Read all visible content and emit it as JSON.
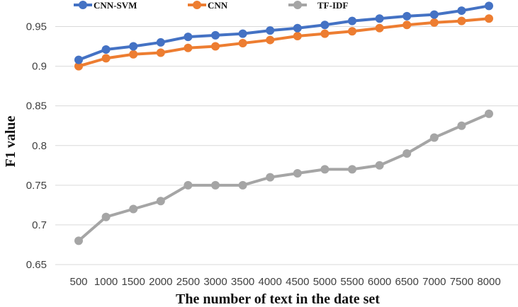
{
  "chart_data": {
    "type": "line",
    "title": "",
    "xlabel": "The number of text in the date set",
    "ylabel": "F1 value",
    "x": [
      500,
      1000,
      1500,
      2000,
      2500,
      3000,
      3500,
      4000,
      4500,
      5000,
      5500,
      6000,
      6500,
      7000,
      7500,
      8000
    ],
    "x_tick_labels": [
      "500",
      "1000",
      "1500",
      "2000",
      "2500",
      "3000",
      "3500",
      "4000",
      "4500",
      "5000",
      "5500",
      "6000",
      "6500",
      "7000",
      "7500",
      "8000"
    ],
    "y_ticks": [
      0.65,
      0.7,
      0.75,
      0.8,
      0.85,
      0.9,
      0.95
    ],
    "y_tick_labels": [
      "0.65",
      "0.7",
      "0.75",
      "0.8",
      "0.85",
      "0.9",
      "0.95"
    ],
    "ylim": [
      0.65,
      0.98
    ],
    "grid": "horizontal",
    "legend_position": "top",
    "series": [
      {
        "name": "CNN-SVM",
        "color": "#4472C4",
        "values": [
          0.908,
          0.921,
          0.925,
          0.93,
          0.937,
          0.939,
          0.941,
          0.945,
          0.948,
          0.952,
          0.957,
          0.96,
          0.963,
          0.965,
          0.97,
          0.976
        ]
      },
      {
        "name": "CNN",
        "color": "#ED7D31",
        "values": [
          0.9,
          0.91,
          0.915,
          0.917,
          0.923,
          0.925,
          0.929,
          0.933,
          0.938,
          0.941,
          0.944,
          0.948,
          0.952,
          0.955,
          0.957,
          0.96
        ]
      },
      {
        "name": "TF-IDF",
        "color": "#A5A5A5",
        "values": [
          0.68,
          0.71,
          0.72,
          0.73,
          0.75,
          0.75,
          0.75,
          0.76,
          0.765,
          0.77,
          0.77,
          0.775,
          0.79,
          0.81,
          0.825,
          0.84
        ]
      }
    ]
  }
}
